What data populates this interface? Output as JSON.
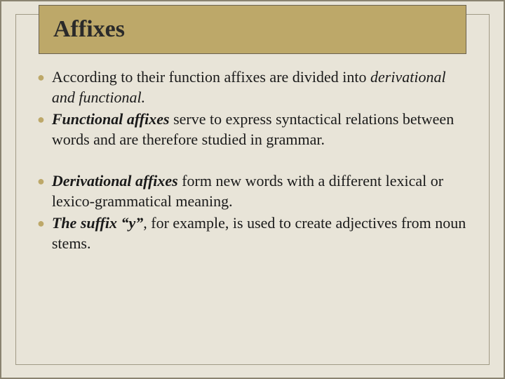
{
  "slide": {
    "title": "Affixes",
    "background_color": "#e8e4d8",
    "title_bar_color": "#bda869",
    "border_color": "#8a8370",
    "inner_border_color": "#a09a85",
    "bullet_color": "#bda869",
    "text_color": "#1a1a1a",
    "title_fontsize": 34,
    "body_fontsize": 22,
    "blocks": [
      {
        "items": [
          {
            "runs": [
              {
                "text": "According to their function affixes are divided into ",
                "style": "normal"
              },
              {
                "text": "derivational and functional.",
                "style": "italic"
              }
            ]
          },
          {
            "runs": [
              {
                "text": "Functional affixes",
                "style": "bold-italic"
              },
              {
                "text": "  serve to express syntactical relations between words and are therefore studied in grammar.",
                "style": "normal"
              }
            ]
          }
        ]
      },
      {
        "items": [
          {
            "runs": [
              {
                "text": "Derivational affixes",
                "style": "bold-italic"
              },
              {
                "text": "  form new words with a different lexical or lexico-grammatical meaning.",
                "style": "normal"
              }
            ]
          },
          {
            "runs": [
              {
                "text": "The suffix “y”",
                "style": "bold-italic"
              },
              {
                "text": ", for example, is used to create adjectives from noun stems.",
                "style": "normal"
              }
            ]
          }
        ]
      }
    ]
  }
}
